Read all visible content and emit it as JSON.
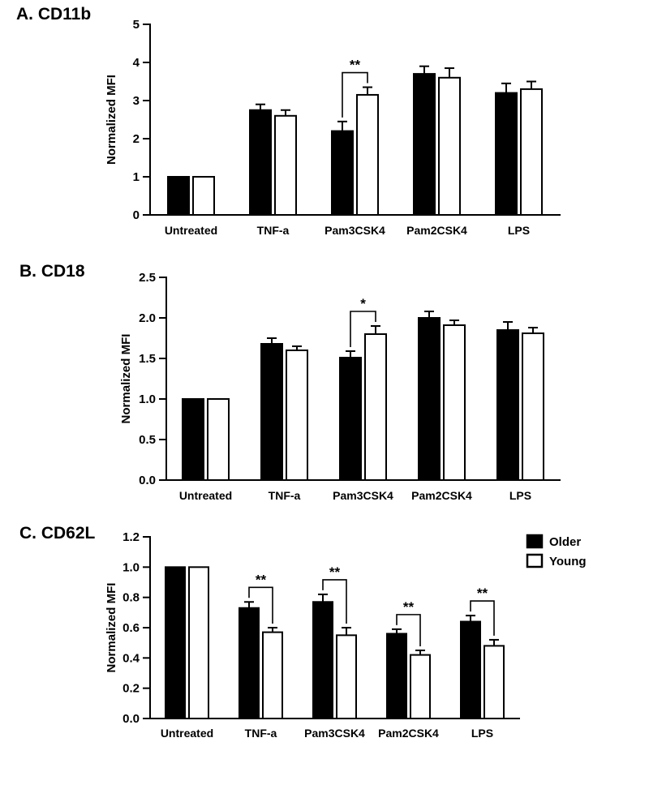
{
  "figure": {
    "background": "#ffffff",
    "axis_color": "#000000",
    "series_colors": {
      "older": "#000000",
      "young": "#ffffff"
    }
  },
  "chart_data": [
    {
      "type": "bar",
      "title": "A. CD11b",
      "ylabel": "Normalized MFI",
      "ylim": [
        0,
        5
      ],
      "yticks": [
        0,
        1,
        2,
        3,
        4,
        5
      ],
      "ytick_labels": [
        "0",
        "1",
        "2",
        "3",
        "4",
        "5"
      ],
      "categories": [
        "Untreated",
        "TNF-a",
        "Pam3CSK4",
        "Pam2CSK4",
        "LPS"
      ],
      "series": [
        {
          "name": "Older",
          "fill": "#000000",
          "values": [
            1.0,
            2.75,
            2.2,
            3.7,
            3.2
          ],
          "errors": [
            0,
            0.15,
            0.25,
            0.2,
            0.25
          ]
        },
        {
          "name": "Young",
          "fill": "#ffffff",
          "values": [
            1.0,
            2.6,
            3.15,
            3.6,
            3.3
          ],
          "errors": [
            0,
            0.15,
            0.2,
            0.25,
            0.2
          ]
        }
      ],
      "significance": [
        {
          "category": "Pam3CSK4",
          "category_index": 2,
          "label": "**"
        }
      ],
      "legend": false,
      "grid": false
    },
    {
      "type": "bar",
      "title": "B. CD18",
      "ylabel": "Normalized MFI",
      "ylim": [
        0,
        2.5
      ],
      "yticks": [
        0,
        0.5,
        1.0,
        1.5,
        2.0,
        2.5
      ],
      "ytick_labels": [
        "0.0",
        "0.5",
        "1.0",
        "1.5",
        "2.0",
        "2.5"
      ],
      "categories": [
        "Untreated",
        "TNF-a",
        "Pam3CSK4",
        "Pam2CSK4",
        "LPS"
      ],
      "series": [
        {
          "name": "Older",
          "fill": "#000000",
          "values": [
            1.0,
            1.68,
            1.51,
            2.0,
            1.85
          ],
          "errors": [
            0,
            0.07,
            0.08,
            0.08,
            0.1
          ]
        },
        {
          "name": "Young",
          "fill": "#ffffff",
          "values": [
            1.0,
            1.6,
            1.8,
            1.91,
            1.81
          ],
          "errors": [
            0,
            0.05,
            0.1,
            0.06,
            0.07
          ]
        }
      ],
      "significance": [
        {
          "category": "Pam3CSK4",
          "category_index": 2,
          "label": "*"
        }
      ],
      "legend": false,
      "grid": false
    },
    {
      "type": "bar",
      "title": "C. CD62L",
      "ylabel": "Normalized MFI",
      "ylim": [
        0,
        1.2
      ],
      "yticks": [
        0,
        0.2,
        0.4,
        0.6,
        0.8,
        1.0,
        1.2
      ],
      "ytick_labels": [
        "0.0",
        "0.2",
        "0.4",
        "0.6",
        "0.8",
        "1.0",
        "1.2"
      ],
      "categories": [
        "Untreated",
        "TNF-a",
        "Pam3CSK4",
        "Pam2CSK4",
        "LPS"
      ],
      "series": [
        {
          "name": "Older",
          "fill": "#000000",
          "values": [
            1.0,
            0.73,
            0.77,
            0.56,
            0.64
          ],
          "errors": [
            0,
            0.04,
            0.05,
            0.03,
            0.04
          ]
        },
        {
          "name": "Young",
          "fill": "#ffffff",
          "values": [
            1.0,
            0.57,
            0.55,
            0.42,
            0.48
          ],
          "errors": [
            0,
            0.03,
            0.05,
            0.03,
            0.04
          ]
        }
      ],
      "significance": [
        {
          "category": "TNF-a",
          "category_index": 1,
          "label": "**"
        },
        {
          "category": "Pam3CSK4",
          "category_index": 2,
          "label": "**"
        },
        {
          "category": "Pam2CSK4",
          "category_index": 3,
          "label": "**"
        },
        {
          "category": "LPS",
          "category_index": 4,
          "label": "**"
        }
      ],
      "legend": true,
      "legend_position": "top-right-outside",
      "legend_items": [
        {
          "label": "Older",
          "fill": "#000000"
        },
        {
          "label": "Young",
          "fill": "#ffffff"
        }
      ],
      "grid": false
    }
  ]
}
